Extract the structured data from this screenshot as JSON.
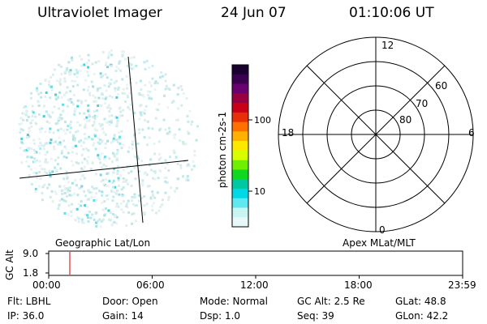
{
  "header": {
    "title": "Ultraviolet Imager",
    "date": "24 Jun 07",
    "time": "01:10:06 UT"
  },
  "colorbar": {
    "label": "photon cm-2s-1",
    "ticks": [
      {
        "value": 100,
        "label": "100"
      },
      {
        "value": 10,
        "label": "10"
      }
    ],
    "colors": [
      "#1a0030",
      "#3a0050",
      "#6a0070",
      "#9a0040",
      "#c80018",
      "#e83008",
      "#ff7000",
      "#ffb000",
      "#ffe800",
      "#d8ff00",
      "#70f000",
      "#10d820",
      "#00c8a0",
      "#00d8e8",
      "#60e8f0",
      "#c8f4f4",
      "#e8f8f8"
    ]
  },
  "polar": {
    "labels": {
      "top": "12",
      "bottom": "0",
      "left": "18",
      "right": "6"
    },
    "rings": [
      {
        "label": "60"
      },
      {
        "label": "70"
      },
      {
        "label": "80"
      }
    ]
  },
  "labels": {
    "geographic": "Geographic Lat/Lon",
    "apex": "Apex MLat/MLT"
  },
  "altitude": {
    "axis_label": "GC Alt",
    "y_ticks": [
      "9.0",
      "1.8"
    ],
    "x_ticks": [
      "00:00",
      "06:00",
      "12:00",
      "18:00",
      "23:59"
    ]
  },
  "info": {
    "flt": "Flt: LBHL",
    "door": "Door: Open",
    "mode": "Mode: Normal",
    "gcalt": "GC Alt: 2.5 Re",
    "glat": "GLat:  48.8",
    "ip": "IP: 36.0",
    "gain": "Gain: 14",
    "dsp": "Dsp:     1.0",
    "seq": "Seq: 39",
    "glon": "GLon:  42.2"
  }
}
